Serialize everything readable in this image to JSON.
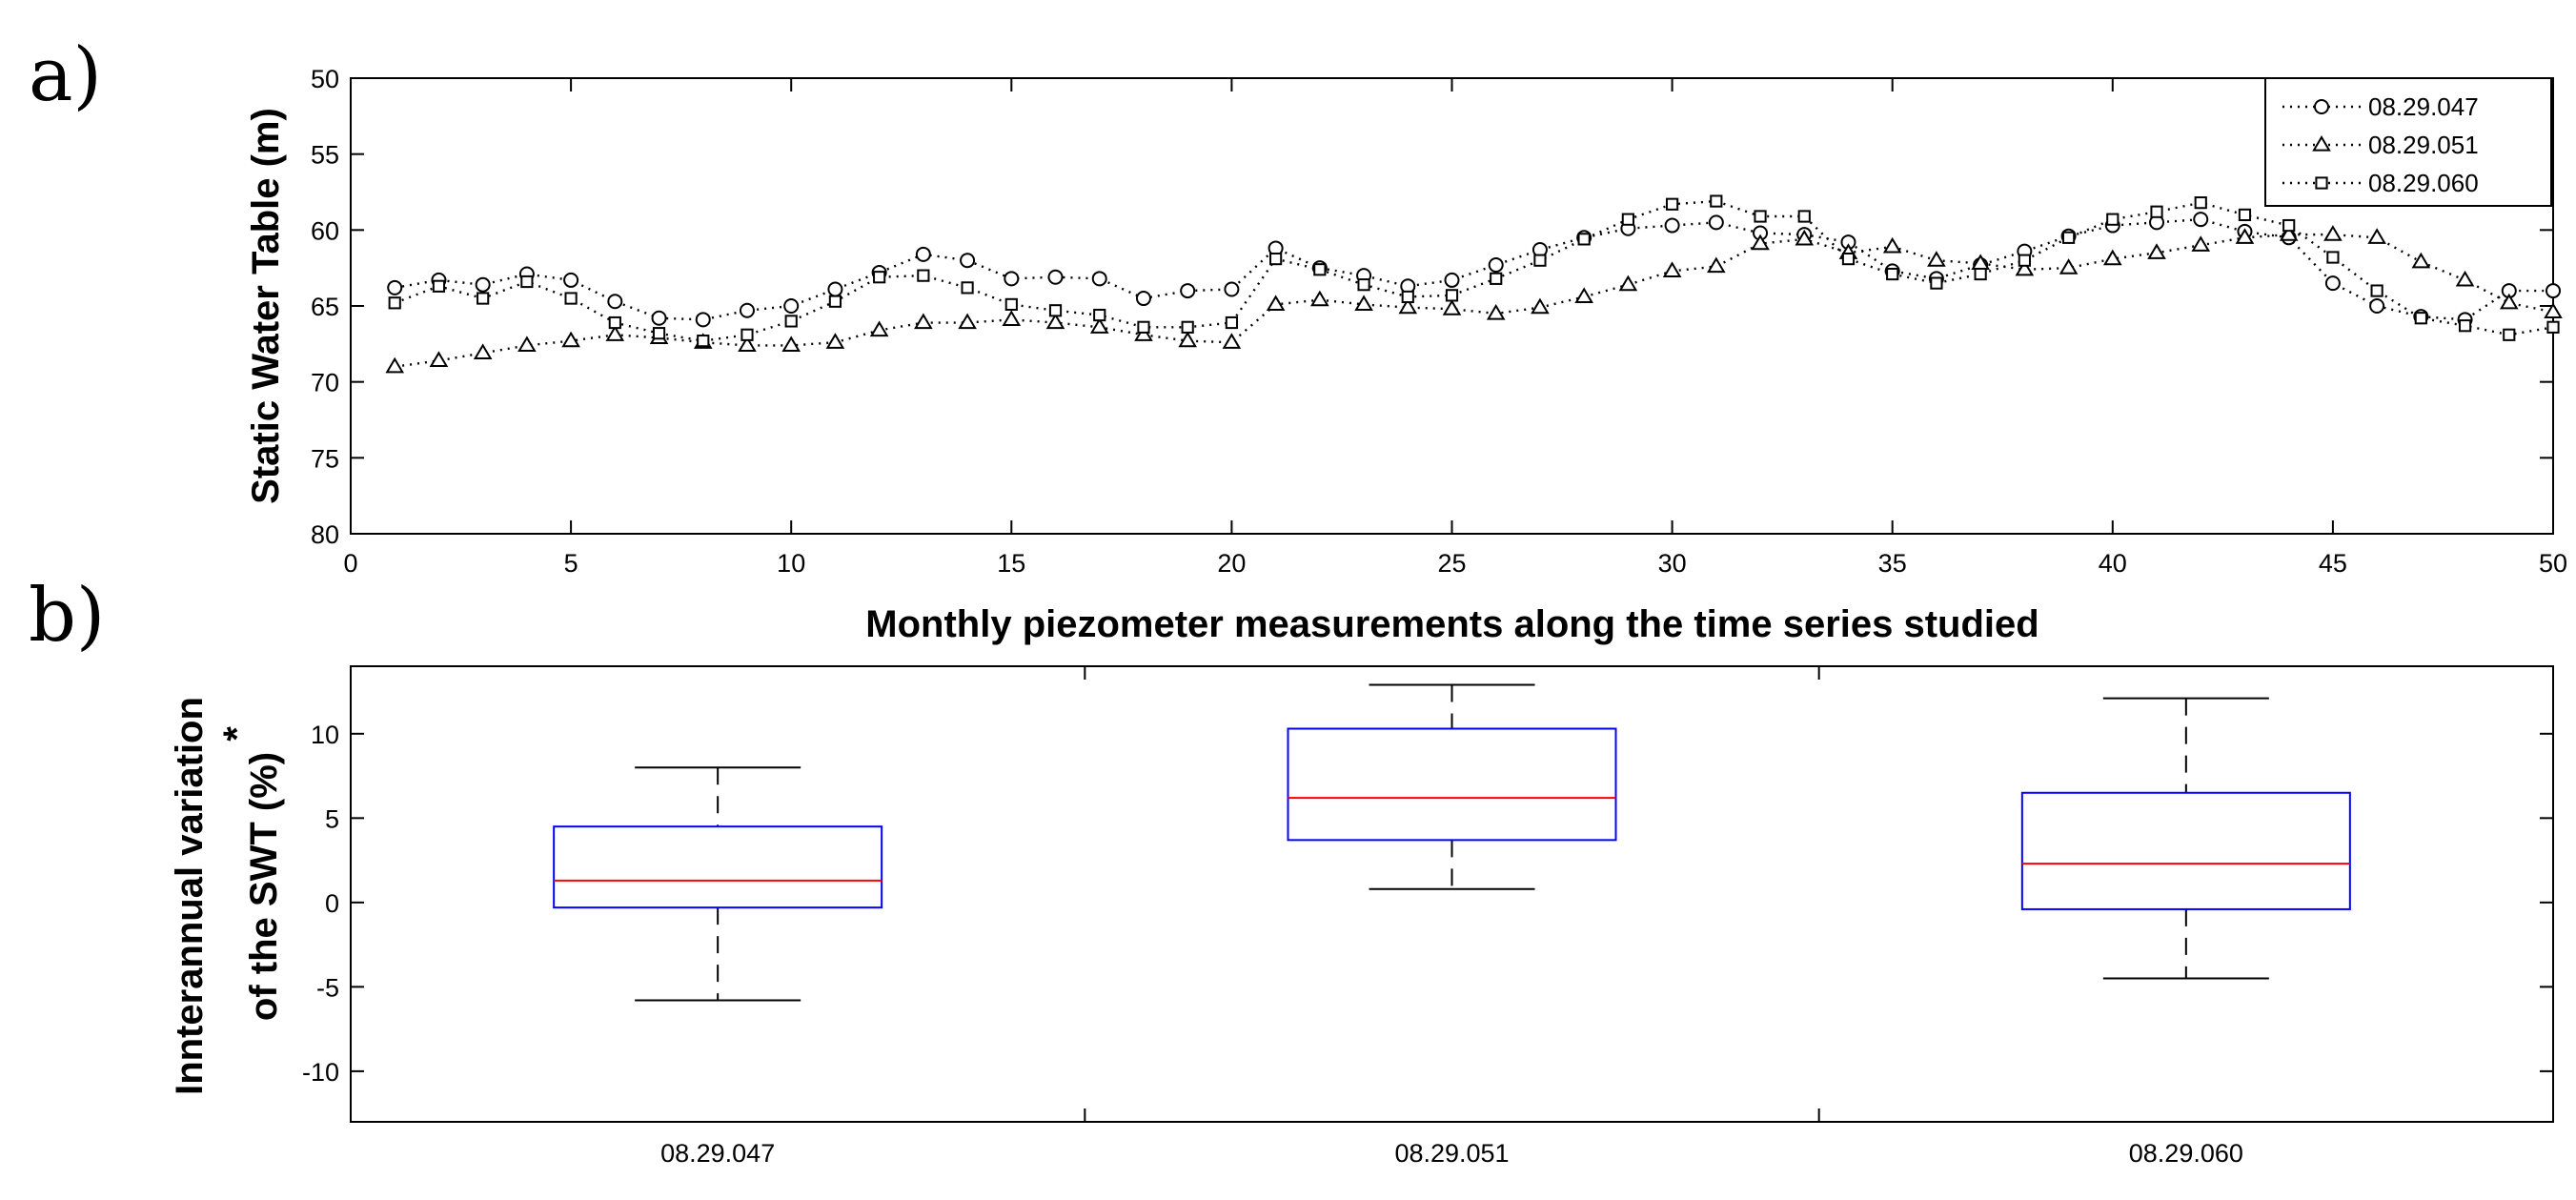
{
  "panel_labels": {
    "a": "a)",
    "b": "b)"
  },
  "chart_data": [
    {
      "type": "line",
      "xlabel": "Monthly piezometer measurements along the time series studied",
      "ylabel": "Static Water Table (m)",
      "xlim": [
        0,
        50
      ],
      "ylim": [
        50,
        80
      ],
      "y_reversed": true,
      "x_ticks": [
        0,
        5,
        10,
        15,
        20,
        25,
        30,
        35,
        40,
        45,
        50
      ],
      "y_ticks": [
        50,
        55,
        60,
        65,
        70,
        75,
        80
      ],
      "grid": false,
      "legend_position": "top-right",
      "x": [
        1,
        2,
        3,
        4,
        5,
        6,
        7,
        8,
        9,
        10,
        11,
        12,
        13,
        14,
        15,
        16,
        17,
        18,
        19,
        20,
        21,
        22,
        23,
        24,
        25,
        26,
        27,
        28,
        29,
        30,
        31,
        32,
        33,
        34,
        35,
        36,
        37,
        38,
        39,
        40,
        41,
        42,
        43,
        44,
        45,
        46,
        47,
        48,
        49,
        50
      ],
      "series": [
        {
          "name": "08.29.047",
          "marker": "circle",
          "values": [
            63.8,
            63.3,
            63.6,
            62.9,
            63.3,
            64.7,
            65.8,
            65.9,
            65.3,
            65.0,
            63.9,
            62.8,
            61.6,
            62.0,
            63.2,
            63.1,
            63.2,
            64.5,
            64.0,
            63.9,
            61.2,
            62.5,
            63.0,
            63.7,
            63.3,
            62.3,
            61.3,
            60.5,
            59.9,
            59.7,
            59.5,
            60.2,
            60.3,
            60.8,
            62.7,
            63.2,
            62.3,
            61.4,
            60.4,
            59.7,
            59.5,
            59.3,
            60.1,
            60.5,
            63.5,
            65.0,
            65.7,
            65.9,
            64.0,
            64.0
          ]
        },
        {
          "name": "08.29.051",
          "marker": "triangle",
          "values": [
            69.0,
            68.6,
            68.1,
            67.6,
            67.3,
            66.9,
            67.1,
            67.4,
            67.6,
            67.6,
            67.4,
            66.6,
            66.1,
            66.1,
            65.9,
            66.1,
            66.4,
            66.9,
            67.3,
            67.4,
            64.9,
            64.6,
            64.9,
            65.1,
            65.2,
            65.5,
            65.1,
            64.4,
            63.6,
            62.7,
            62.4,
            60.9,
            60.6,
            61.5,
            61.1,
            62.0,
            62.2,
            62.6,
            62.5,
            61.9,
            61.5,
            61.0,
            60.5,
            60.3,
            60.3,
            60.5,
            62.1,
            63.3,
            64.8,
            65.4
          ]
        },
        {
          "name": "08.29.060",
          "marker": "square",
          "values": [
            64.8,
            63.7,
            64.5,
            63.4,
            64.5,
            66.1,
            66.8,
            67.3,
            66.9,
            66.0,
            64.7,
            63.1,
            63.0,
            63.8,
            64.9,
            65.3,
            65.6,
            66.4,
            66.4,
            66.1,
            61.9,
            62.6,
            63.6,
            64.4,
            64.3,
            63.2,
            62.0,
            60.6,
            59.3,
            58.3,
            58.1,
            59.1,
            59.1,
            61.9,
            62.9,
            63.5,
            62.9,
            62.0,
            60.5,
            59.3,
            58.8,
            58.2,
            59.0,
            59.7,
            61.8,
            64.0,
            65.8,
            66.3,
            66.9,
            66.4
          ]
        }
      ]
    },
    {
      "type": "box",
      "ylabel_line1": "Innterannual variation",
      "ylabel_line2": "of the SWT (%)",
      "ylabel_note": "*",
      "ylim": [
        -13,
        14
      ],
      "y_ticks": [
        -10,
        -5,
        0,
        5,
        10
      ],
      "categories": [
        "08.29.047",
        "08.29.051",
        "08.29.060"
      ],
      "boxes": [
        {
          "min": -5.8,
          "q1": -0.3,
          "median": 1.3,
          "q3": 4.5,
          "max": 8.0
        },
        {
          "min": 0.8,
          "q1": 3.7,
          "median": 6.2,
          "q3": 10.3,
          "max": 12.9
        },
        {
          "min": -4.5,
          "q1": -0.4,
          "median": 2.3,
          "q3": 6.5,
          "max": 12.1
        }
      ],
      "colors": {
        "box": "#0000ff",
        "median": "#ff0000",
        "whisker": "#000000"
      }
    }
  ]
}
